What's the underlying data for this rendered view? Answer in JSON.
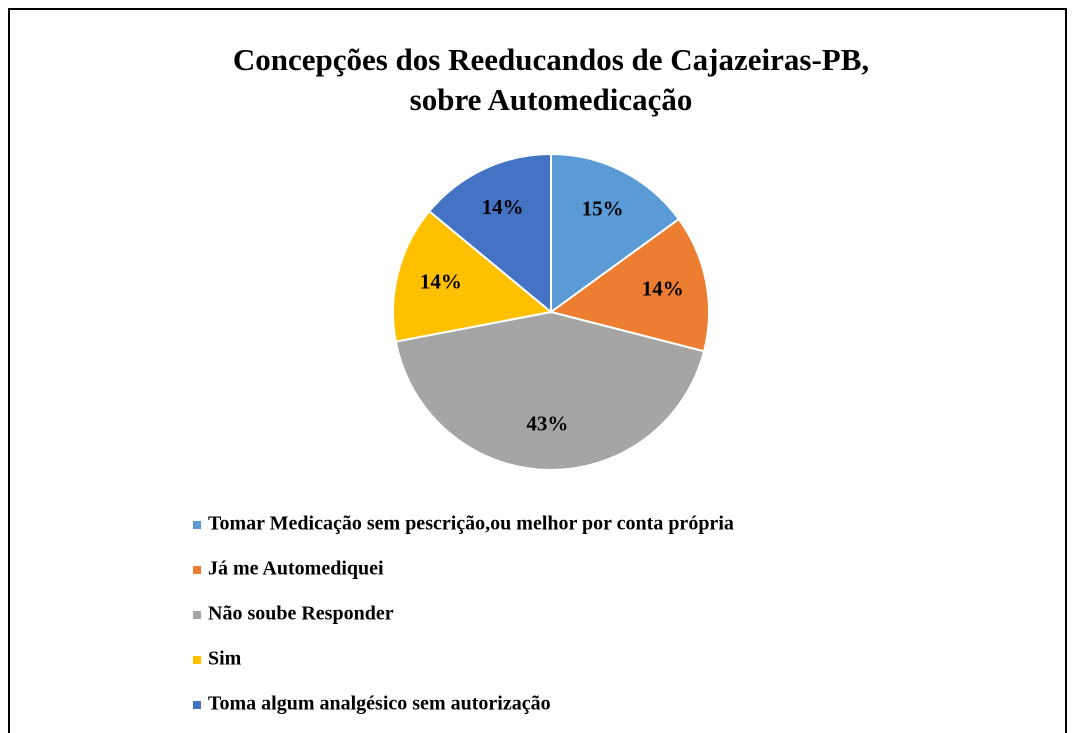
{
  "chart_data": {
    "type": "pie",
    "title": [
      "Concepções dos Reeducandos  de Cajazeiras-PB,",
      "sobre Automedicação"
    ],
    "categories": [
      "Tomar Medicação sem pescrição,ou melhor por conta própria",
      "Já me Automediquei",
      "Não soube Responder",
      "Sim",
      "Toma algum analgésico sem autorização"
    ],
    "values": [
      15,
      14,
      43,
      14,
      14
    ],
    "value_labels": [
      "15%",
      "14%",
      "43%",
      "14%",
      "14%"
    ],
    "colors": [
      "#5b9bd5",
      "#ed7d31",
      "#a5a5a5",
      "#ffc000",
      "#4472c4"
    ],
    "legend": "bottom"
  }
}
